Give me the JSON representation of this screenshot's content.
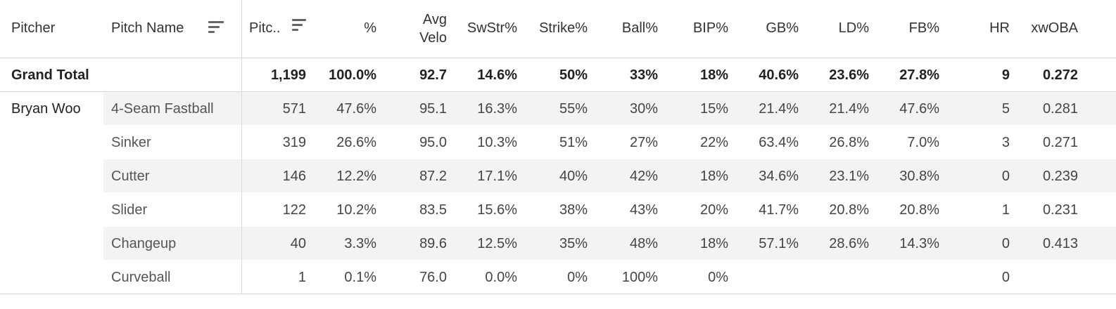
{
  "header": {
    "pitcher": "Pitcher",
    "pitch_name": "Pitch Name",
    "pitches": "Pitc..",
    "pct": "%",
    "avg_velo_1": "Avg",
    "avg_velo_2": "Velo",
    "swstr": "SwStr%",
    "strike": "Strike%",
    "ball": "Ball%",
    "bip": "BIP%",
    "gb": "GB%",
    "ld": "LD%",
    "fb": "FB%",
    "hr": "HR",
    "xwoba": "xwOBA"
  },
  "grand_total": {
    "label": "Grand Total",
    "pitches": "1,199",
    "pct": "100.0%",
    "velo": "92.7",
    "swstr": "14.6%",
    "strike": "50%",
    "ball": "33%",
    "bip": "18%",
    "gb": "40.6%",
    "ld": "23.6%",
    "fb": "27.8%",
    "hr": "9",
    "xwoba": "0.272"
  },
  "pitcher_name": "Bryan Woo",
  "rows": [
    {
      "name": "4-Seam Fastball",
      "pitches": "571",
      "pct": "47.6%",
      "velo": "95.1",
      "swstr": "16.3%",
      "strike": "55%",
      "ball": "30%",
      "bip": "15%",
      "gb": "21.4%",
      "ld": "21.4%",
      "fb": "47.6%",
      "hr": "5",
      "xwoba": "0.281"
    },
    {
      "name": "Sinker",
      "pitches": "319",
      "pct": "26.6%",
      "velo": "95.0",
      "swstr": "10.3%",
      "strike": "51%",
      "ball": "27%",
      "bip": "22%",
      "gb": "63.4%",
      "ld": "26.8%",
      "fb": "7.0%",
      "hr": "3",
      "xwoba": "0.271"
    },
    {
      "name": "Cutter",
      "pitches": "146",
      "pct": "12.2%",
      "velo": "87.2",
      "swstr": "17.1%",
      "strike": "40%",
      "ball": "42%",
      "bip": "18%",
      "gb": "34.6%",
      "ld": "23.1%",
      "fb": "30.8%",
      "hr": "0",
      "xwoba": "0.239"
    },
    {
      "name": "Slider",
      "pitches": "122",
      "pct": "10.2%",
      "velo": "83.5",
      "swstr": "15.6%",
      "strike": "38%",
      "ball": "43%",
      "bip": "20%",
      "gb": "41.7%",
      "ld": "20.8%",
      "fb": "20.8%",
      "hr": "1",
      "xwoba": "0.231"
    },
    {
      "name": "Changeup",
      "pitches": "40",
      "pct": "3.3%",
      "velo": "89.6",
      "swstr": "12.5%",
      "strike": "35%",
      "ball": "48%",
      "bip": "18%",
      "gb": "57.1%",
      "ld": "28.6%",
      "fb": "14.3%",
      "hr": "0",
      "xwoba": "0.413"
    },
    {
      "name": "Curveball",
      "pitches": "1",
      "pct": "0.1%",
      "velo": "76.0",
      "swstr": "0.0%",
      "strike": "0%",
      "ball": "100%",
      "bip": "0%",
      "gb": "",
      "ld": "",
      "fb": "",
      "hr": "0",
      "xwoba": ""
    }
  ]
}
